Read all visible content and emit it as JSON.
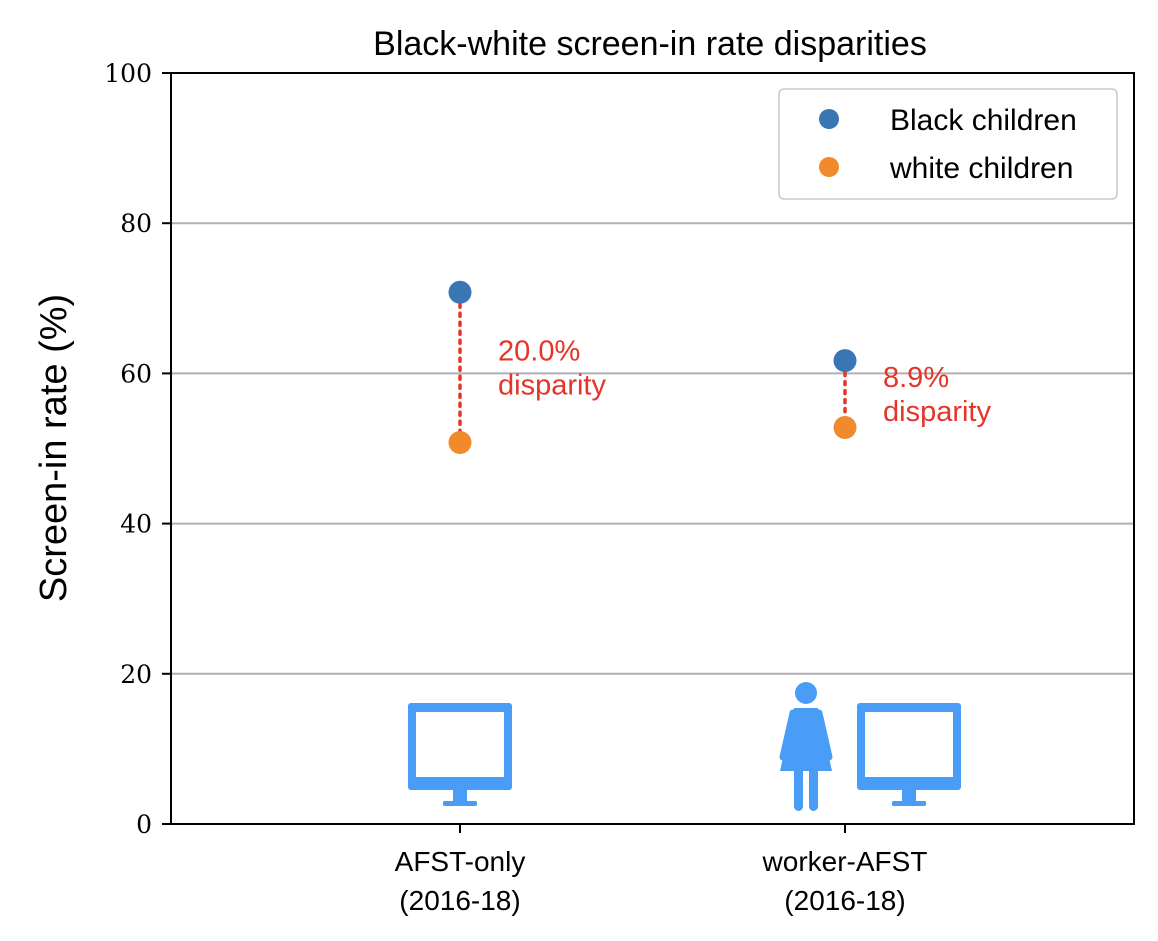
{
  "chart_data": {
    "type": "scatter",
    "title": "Black-white screen-in rate disparities",
    "xlabel": "",
    "ylabel": "Screen-in rate (%)",
    "ylim": [
      0,
      100
    ],
    "yticks": [
      0,
      20,
      40,
      60,
      80,
      100
    ],
    "grid": "horizontal",
    "categories": [
      {
        "line1": "AFST-only",
        "line2": "(2016-18)"
      },
      {
        "line1": "worker-AFST",
        "line2": "(2016-18)"
      }
    ],
    "series": [
      {
        "name": "Black children",
        "color": "#3a75b4",
        "values": [
          70.8,
          61.7
        ]
      },
      {
        "name": "white children",
        "color": "#f08a2c",
        "values": [
          50.8,
          52.8
        ]
      }
    ],
    "legend": {
      "position": "top-right"
    },
    "annotations": [
      {
        "category_index": 0,
        "line1": "20.0%",
        "line2": "disparity"
      },
      {
        "category_index": 1,
        "line1": "8.9%",
        "line2": "disparity"
      }
    ],
    "disparity_color": "#e5342a",
    "icons": [
      {
        "category_index": 0,
        "items": [
          "computer-monitor-icon"
        ]
      },
      {
        "category_index": 1,
        "items": [
          "person-icon",
          "computer-monitor-icon"
        ]
      }
    ],
    "icon_color": "#4a9df7"
  }
}
